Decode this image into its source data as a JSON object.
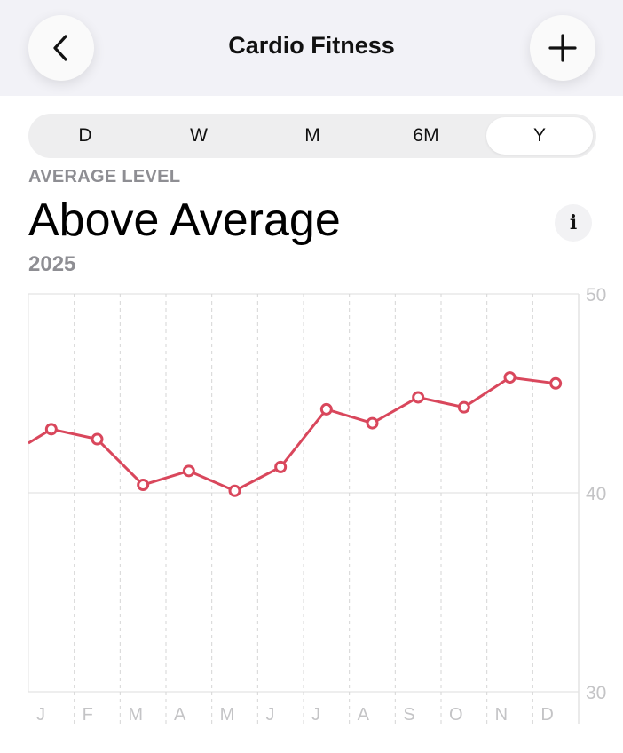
{
  "header": {
    "title": "Cardio Fitness",
    "back_icon": "chevron-left-icon",
    "add_icon": "plus-icon"
  },
  "segments": {
    "items": [
      "D",
      "W",
      "M",
      "6M",
      "Y"
    ],
    "selected": "Y"
  },
  "summary": {
    "label": "AVERAGE LEVEL",
    "value": "Above Average",
    "period": "2025",
    "info_icon": "info-icon"
  },
  "chart_data": {
    "type": "line",
    "categories": [
      "J",
      "F",
      "M",
      "A",
      "M",
      "J",
      "J",
      "A",
      "S",
      "O",
      "N",
      "D"
    ],
    "values": [
      43.2,
      42.7,
      40.4,
      41.1,
      40.1,
      41.3,
      44.2,
      43.5,
      44.8,
      44.3,
      45.8,
      45.5
    ],
    "previous_value": 42.5,
    "ylim": [
      30,
      50
    ],
    "yticks": [
      30,
      40,
      50
    ],
    "y_axis_side": "right",
    "grid": true,
    "line_color": "#d9475c"
  }
}
